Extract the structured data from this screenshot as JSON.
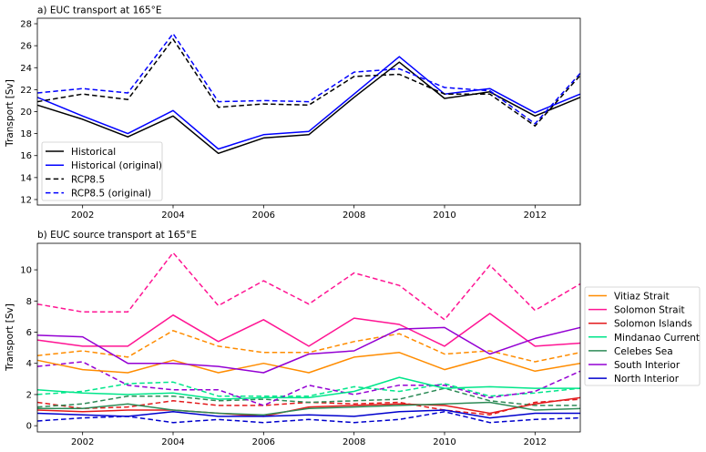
{
  "chart_data": [
    {
      "type": "line",
      "title": "a) EUC transport at 165°E",
      "xlabel": "",
      "ylabel": "Transport [Sv]",
      "xlim": [
        2001,
        2013
      ],
      "ylim": [
        11.5,
        28.5
      ],
      "x_ticks": [
        2002,
        2004,
        2006,
        2008,
        2010,
        2012
      ],
      "y_ticks": [
        12,
        14,
        16,
        18,
        20,
        22,
        24,
        26,
        28
      ],
      "x": [
        2001,
        2002,
        2003,
        2004,
        2005,
        2006,
        2007,
        2008,
        2009,
        2010,
        2011,
        2012,
        2013
      ],
      "legend_position": "lower-left",
      "series": [
        {
          "name": "Historical",
          "color": "#000000",
          "dash": "solid",
          "values": [
            20.6,
            19.3,
            17.7,
            19.6,
            16.2,
            17.6,
            17.9,
            21.3,
            24.5,
            21.2,
            21.8,
            19.6,
            21.3
          ]
        },
        {
          "name": "Historical (original)",
          "color": "#0000ff",
          "dash": "solid",
          "values": [
            21.3,
            19.6,
            18.0,
            20.1,
            16.6,
            17.9,
            18.2,
            21.6,
            25.0,
            21.6,
            22.1,
            19.9,
            21.6
          ]
        },
        {
          "name": "RCP8.5",
          "color": "#000000",
          "dash": "dashed",
          "values": [
            20.9,
            21.6,
            21.1,
            26.6,
            20.4,
            20.7,
            20.6,
            23.2,
            23.4,
            21.6,
            21.6,
            18.7,
            23.3
          ]
        },
        {
          "name": "RCP8.5 (original)",
          "color": "#0000ff",
          "dash": "dashed",
          "values": [
            21.7,
            22.1,
            21.7,
            27.1,
            20.9,
            21.0,
            20.9,
            23.6,
            23.9,
            22.2,
            21.9,
            18.9,
            23.5
          ]
        }
      ]
    },
    {
      "type": "line",
      "title": "b) EUC source transport at 165°E",
      "xlabel": "",
      "ylabel": "Transport [Sv]",
      "xlim": [
        2001,
        2013
      ],
      "ylim": [
        -0.4,
        11.7
      ],
      "x_ticks": [
        2002,
        2004,
        2006,
        2008,
        2010,
        2012
      ],
      "y_ticks": [
        0,
        2,
        4,
        6,
        8,
        10
      ],
      "x": [
        2001,
        2002,
        2003,
        2004,
        2005,
        2006,
        2007,
        2008,
        2009,
        2010,
        2011,
        2012,
        2013
      ],
      "legend_position": "outside-right",
      "series": [
        {
          "name": "Vitiaz Strait",
          "color": "#ff8c00",
          "solid": [
            4.2,
            3.6,
            3.4,
            4.2,
            3.4,
            4.0,
            3.4,
            4.4,
            4.7,
            3.6,
            4.4,
            3.5,
            4.0
          ],
          "dashed": [
            4.5,
            4.8,
            4.4,
            6.1,
            5.1,
            4.7,
            4.7,
            5.4,
            5.9,
            4.6,
            4.8,
            4.1,
            4.7
          ]
        },
        {
          "name": "Solomon Strait",
          "color": "#ff1493",
          "solid": [
            5.5,
            5.1,
            5.1,
            7.1,
            5.4,
            6.8,
            5.1,
            6.9,
            6.5,
            5.1,
            7.2,
            5.1,
            5.3
          ],
          "dashed": [
            7.8,
            7.3,
            7.3,
            11.1,
            7.7,
            9.3,
            7.8,
            9.8,
            9.0,
            6.8,
            10.3,
            7.4,
            9.1
          ]
        },
        {
          "name": "Solomon Islands",
          "color": "#e31a1c",
          "solid": [
            1.0,
            0.9,
            1.0,
            1.0,
            0.8,
            0.6,
            1.2,
            1.3,
            1.4,
            1.3,
            0.8,
            1.4,
            1.8
          ],
          "dashed": [
            1.5,
            1.1,
            1.2,
            1.6,
            1.3,
            1.3,
            1.5,
            1.4,
            1.5,
            1.0,
            0.7,
            1.5,
            1.7
          ]
        },
        {
          "name": "Mindanao Current",
          "color": "#00e68a",
          "solid": [
            2.3,
            2.1,
            2.0,
            2.1,
            1.7,
            1.8,
            1.8,
            2.2,
            3.1,
            2.4,
            2.5,
            2.4,
            2.4
          ],
          "dashed": [
            2.0,
            2.2,
            2.7,
            2.8,
            1.9,
            1.9,
            1.9,
            2.5,
            2.2,
            2.7,
            1.9,
            2.1,
            2.4
          ]
        },
        {
          "name": "Celebes Sea",
          "color": "#2e8b57",
          "solid": [
            1.1,
            1.1,
            1.4,
            1.0,
            0.8,
            0.7,
            1.1,
            1.2,
            1.3,
            1.4,
            1.5,
            1.0,
            1.1
          ],
          "dashed": [
            1.2,
            1.4,
            1.9,
            1.9,
            1.6,
            1.7,
            1.5,
            1.6,
            1.7,
            2.4,
            1.6,
            1.3,
            1.3
          ]
        },
        {
          "name": "South Interior",
          "color": "#9400d3",
          "solid": [
            5.8,
            5.7,
            4.0,
            4.0,
            3.8,
            3.4,
            4.6,
            4.8,
            6.2,
            6.3,
            4.6,
            5.6,
            6.3
          ],
          "dashed": [
            3.8,
            4.1,
            2.6,
            2.3,
            2.3,
            1.3,
            2.6,
            2.0,
            2.6,
            2.6,
            1.8,
            2.2,
            3.5
          ]
        },
        {
          "name": "North Interior",
          "color": "#0000cd",
          "solid": [
            0.8,
            0.7,
            0.6,
            0.9,
            0.6,
            0.6,
            0.7,
            0.6,
            0.9,
            1.0,
            0.5,
            0.8,
            0.8
          ],
          "dashed": [
            0.3,
            0.5,
            0.6,
            0.2,
            0.4,
            0.2,
            0.4,
            0.2,
            0.4,
            0.9,
            0.2,
            0.4,
            0.5
          ]
        }
      ]
    }
  ]
}
